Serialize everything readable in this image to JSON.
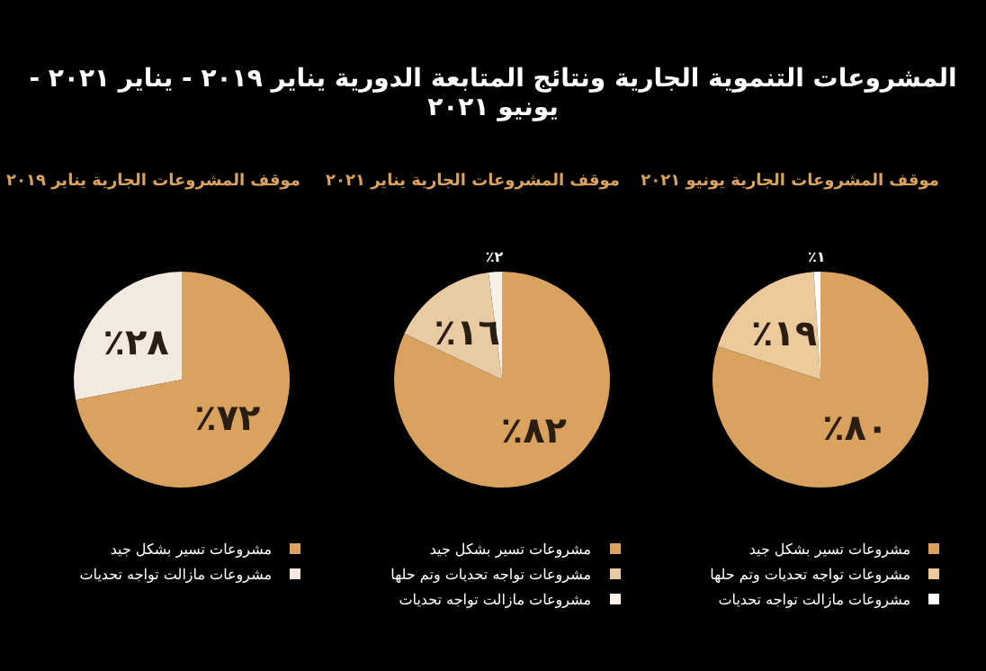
{
  "chart_data": [
    {
      "type": "pie",
      "title": "المشروعات التنموية الجارية ونتائج المتابعة الدورية يناير ٢٠١٩ - يناير ٢٠٢١ - يونيو ٢٠٢١",
      "subtitle": "موقف المشروعات الجارية يناير ٢٠١٩",
      "categories": [
        "مشروعات تسير بشكل جيد",
        "مشروعات مازالت تواجه تحديات"
      ],
      "values": [
        72,
        28
      ],
      "value_labels": [
        "٧٢٪",
        "٢٨٪"
      ],
      "colors": [
        "#d9a25e",
        "#f2eadf"
      ],
      "legend": "bottom"
    },
    {
      "type": "pie",
      "subtitle": "موقف المشروعات الجارية يناير ٢٠٢١",
      "categories": [
        "مشروعات تسير بشكل جيد",
        "مشروعات تواجه تحديات وتم حلها",
        "مشروعات مازالت تواجه تحديات"
      ],
      "values": [
        82,
        16,
        2
      ],
      "value_labels": [
        "٨٢٪",
        "١٦٪",
        "٢٪"
      ],
      "colors": [
        "#d9a25e",
        "#e9cba3",
        "#f6f0e7"
      ],
      "legend": "bottom"
    },
    {
      "type": "pie",
      "subtitle": "موقف المشروعات الجارية يونيو ٢٠٢١",
      "categories": [
        "مشروعات تسير بشكل جيد",
        "مشروعات تواجه تحديات وتم حلها",
        "مشروعات مازالت تواجه تحديات"
      ],
      "values": [
        80,
        19,
        1
      ],
      "value_labels": [
        "٨٠٪",
        "١٩٪",
        "١٪"
      ],
      "colors": [
        "#d9a25e",
        "#ecca9c",
        "#ffffff"
      ],
      "legend": "bottom"
    }
  ]
}
